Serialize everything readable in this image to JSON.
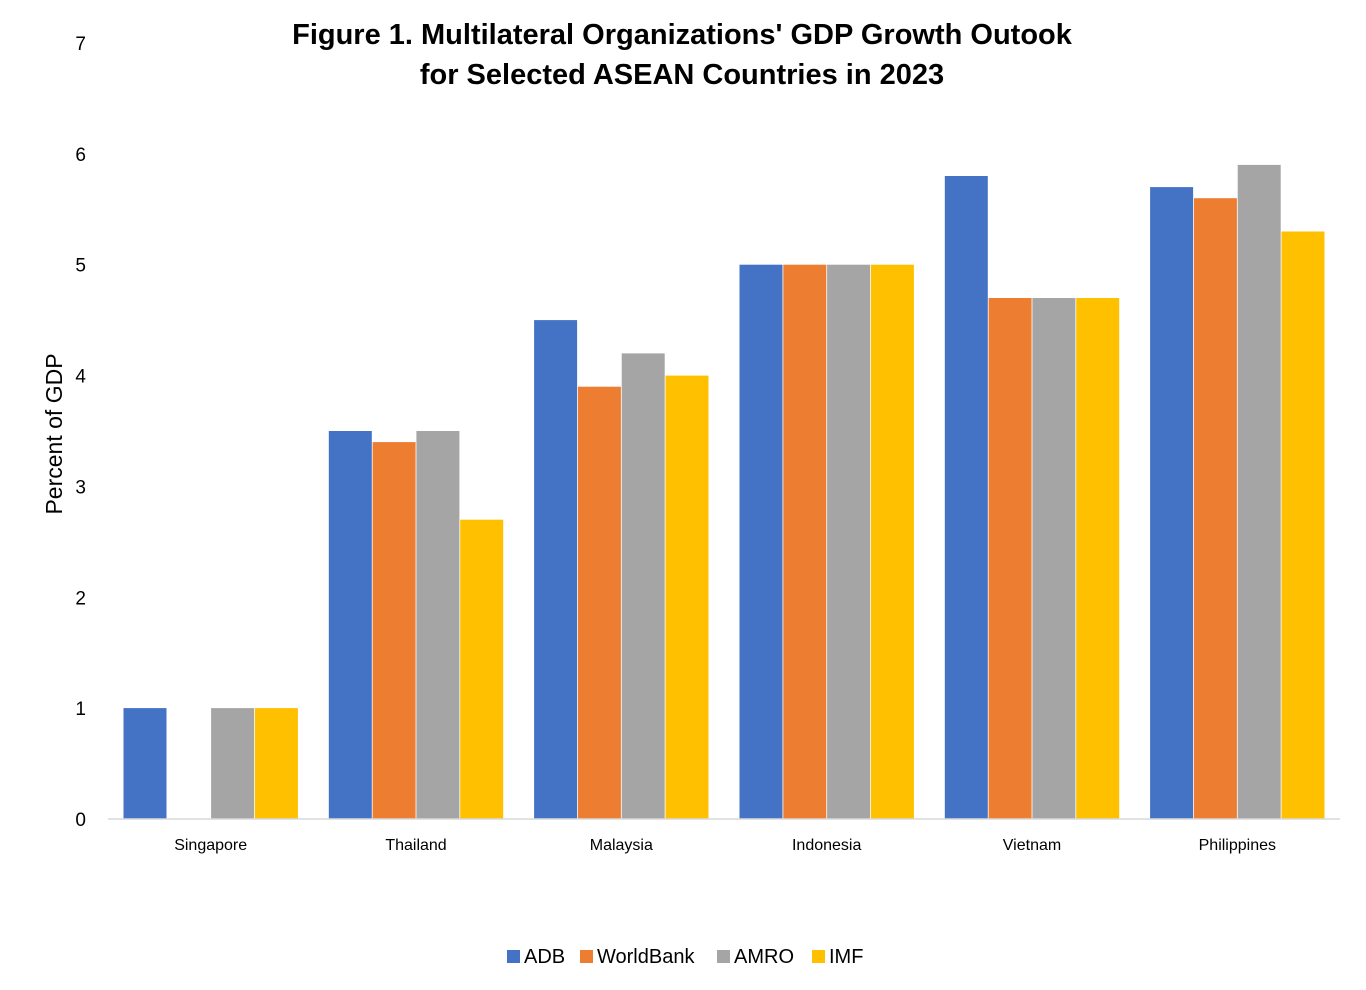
{
  "chart_data": {
    "type": "bar",
    "title": [
      "Figure 1. Multilateral Organizations' GDP Growth Outook",
      "for Selected ASEAN Countries in 2023"
    ],
    "xlabel": "",
    "ylabel": "Percent of GDP",
    "ylim": [
      0,
      7
    ],
    "yticks": [
      "0",
      "1",
      "2",
      "3",
      "4",
      "5",
      "6",
      "7"
    ],
    "grid": false,
    "legend_position": "bottom",
    "categories": [
      "Singapore",
      "Thailand",
      "Malaysia",
      "Indonesia",
      "Vietnam",
      "Philippines"
    ],
    "series": [
      {
        "name": "ADB",
        "color": "#4472C4",
        "values": [
          1.0,
          3.5,
          4.5,
          5.0,
          5.8,
          5.7
        ]
      },
      {
        "name": "WorldBank",
        "color": "#ED7D31",
        "values": [
          null,
          3.4,
          3.9,
          5.0,
          4.7,
          5.6
        ]
      },
      {
        "name": "AMRO",
        "color": "#A5A5A5",
        "values": [
          1.0,
          3.5,
          4.2,
          5.0,
          4.7,
          5.9
        ]
      },
      {
        "name": "IMF",
        "color": "#FFC000",
        "values": [
          1.0,
          2.7,
          4.0,
          5.0,
          4.7,
          5.3
        ]
      }
    ]
  }
}
